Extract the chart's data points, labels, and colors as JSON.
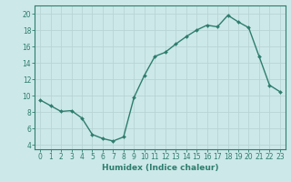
{
  "x": [
    0,
    1,
    2,
    3,
    4,
    5,
    6,
    7,
    8,
    9,
    10,
    11,
    12,
    13,
    14,
    15,
    16,
    17,
    18,
    19,
    20,
    21,
    22,
    23
  ],
  "y": [
    9.5,
    8.8,
    8.1,
    8.2,
    7.3,
    5.3,
    4.8,
    4.5,
    5.0,
    9.8,
    12.5,
    14.8,
    15.3,
    16.3,
    17.2,
    18.0,
    18.6,
    18.4,
    19.8,
    19.0,
    18.3,
    14.8,
    11.3,
    10.5
  ],
  "line_color": "#2e7d6e",
  "marker": "D",
  "marker_size": 2,
  "bg_color": "#cce8e8",
  "grid_color": "#b8d4d4",
  "axis_color": "#2e7d6e",
  "xlabel": "Humidex (Indice chaleur)",
  "xlabel_fontsize": 6.5,
  "tick_fontsize": 5.5,
  "xlim": [
    -0.5,
    23.5
  ],
  "ylim": [
    3.5,
    21.0
  ],
  "yticks": [
    4,
    6,
    8,
    10,
    12,
    14,
    16,
    18,
    20
  ],
  "xticks": [
    0,
    1,
    2,
    3,
    4,
    5,
    6,
    7,
    8,
    9,
    10,
    11,
    12,
    13,
    14,
    15,
    16,
    17,
    18,
    19,
    20,
    21,
    22,
    23
  ]
}
